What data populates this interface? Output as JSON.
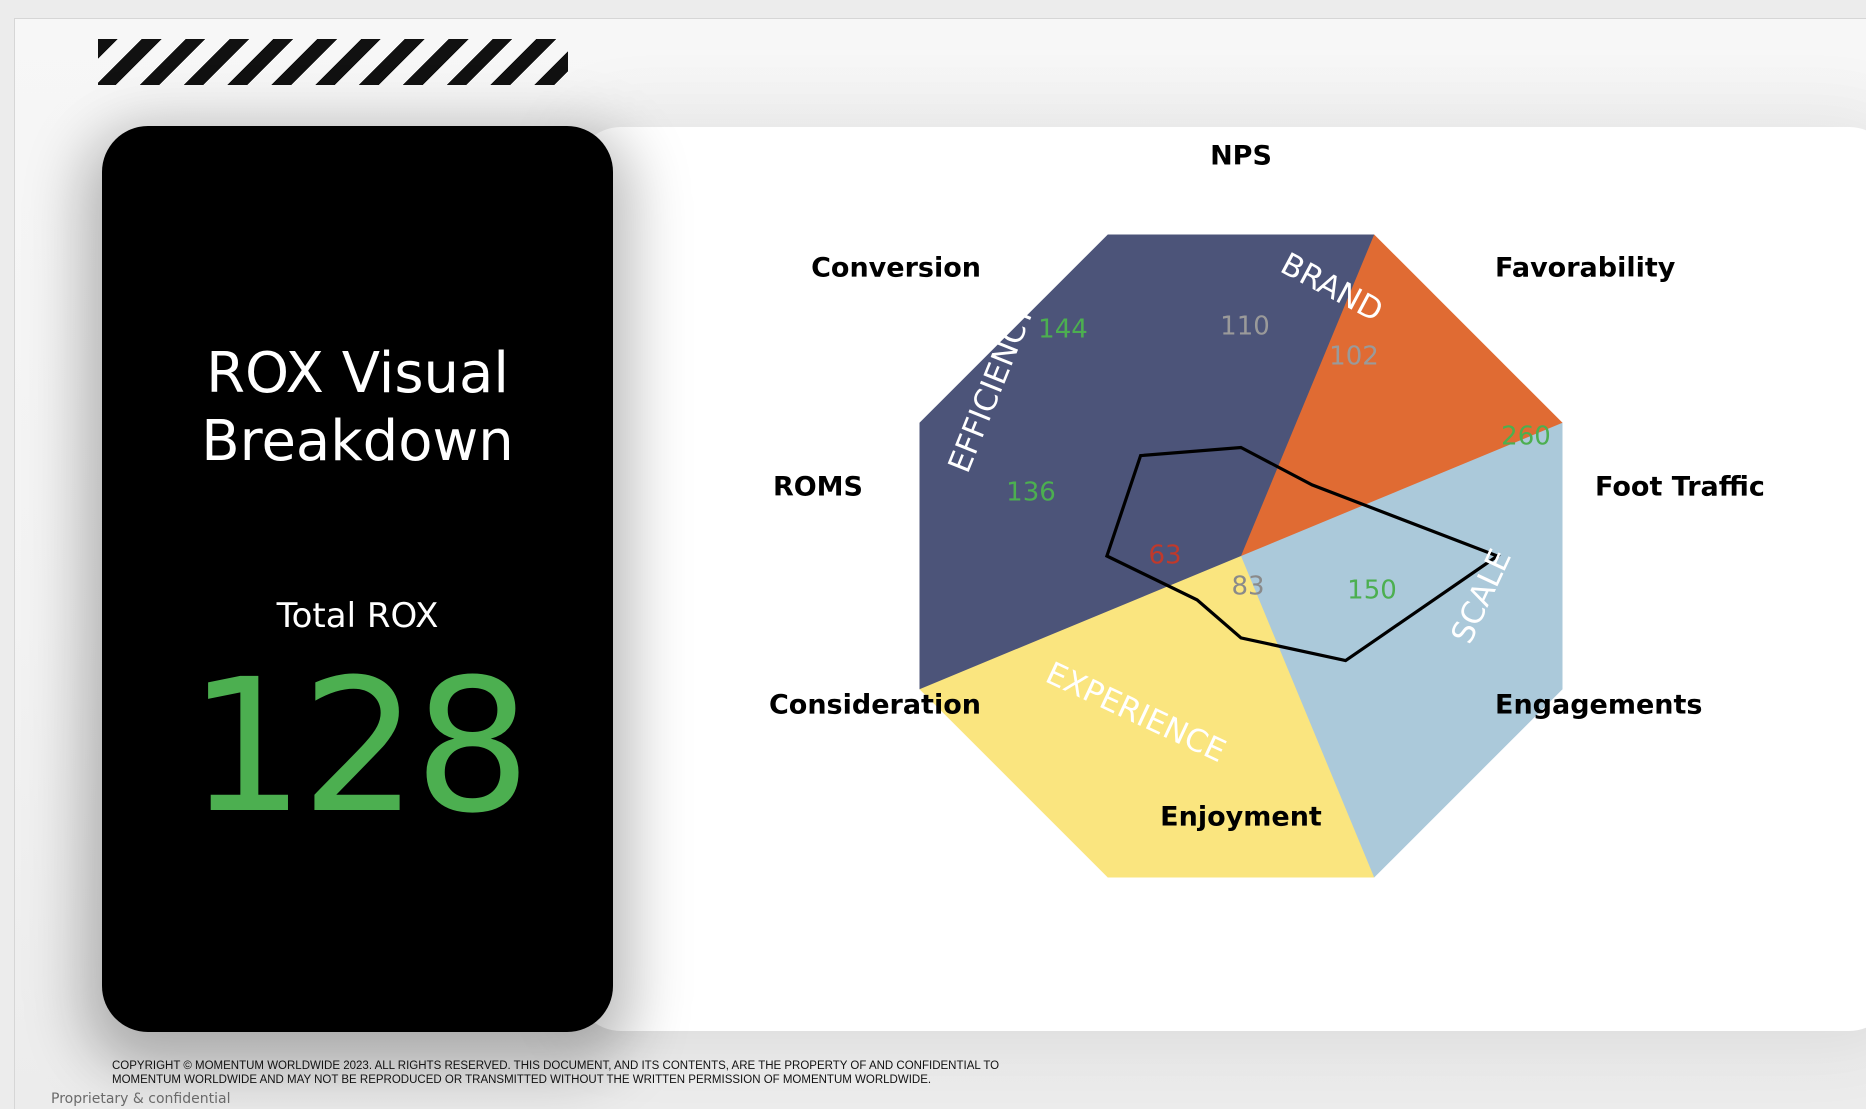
{
  "title_card": {
    "title": "ROX Visual\nBreakdown",
    "total_label": "Total ROX",
    "total_value": "128",
    "total_color": "#4caf50"
  },
  "chart_data": {
    "type": "radar",
    "axes": [
      "NPS",
      "Favorability",
      "Foot Traffic",
      "Engagements",
      "Enjoyment",
      "Consideration",
      "ROMS",
      "Conversion"
    ],
    "sectors": [
      {
        "name": "BRAND",
        "color": "#e06b33"
      },
      {
        "name": "SCALE",
        "color": "#abc9da"
      },
      {
        "name": "EXPERIENCE",
        "color": "#fae57f"
      },
      {
        "name": "EFFICIENCY",
        "color": "#4c5479"
      }
    ],
    "values": [
      110,
      102,
      260,
      150,
      83,
      63,
      136,
      144
    ],
    "value_labels": [
      {
        "axis": "NPS",
        "text": "110",
        "color": "#9a9a9a"
      },
      {
        "axis": "Favorability",
        "text": "102",
        "color": "#9a9a9a"
      },
      {
        "axis": "Foot Traffic",
        "text": "260",
        "color": "#4caf50"
      },
      {
        "axis": "Engagements",
        "text": "150",
        "color": "#4caf50"
      },
      {
        "axis": "Enjoyment",
        "text": "83",
        "color": "#8a8a8a"
      },
      {
        "axis": "Consideration",
        "text": "63",
        "color": "#c0392b"
      },
      {
        "axis": "ROMS",
        "text": "136",
        "color": "#4caf50"
      },
      {
        "axis": "Conversion",
        "text": "144",
        "color": "#4caf50"
      }
    ],
    "range": [
      0,
      290
    ]
  },
  "footer": {
    "copyright": "COPYRIGHT © MOMENTUM WORLDWIDE 2023. ALL RIGHTS RESERVED. THIS DOCUMENT, AND ITS CONTENTS, ARE THE PROPERTY OF AND CONFIDENTIAL TO\nMOMENTUM WORLDWIDE AND MAY NOT BE REPRODUCED OR TRANSMITTED WITHOUT THE WRITTEN PERMISSION OF MOMENTUM WORLDWIDE.",
    "confidential": "Proprietary & confidential"
  }
}
